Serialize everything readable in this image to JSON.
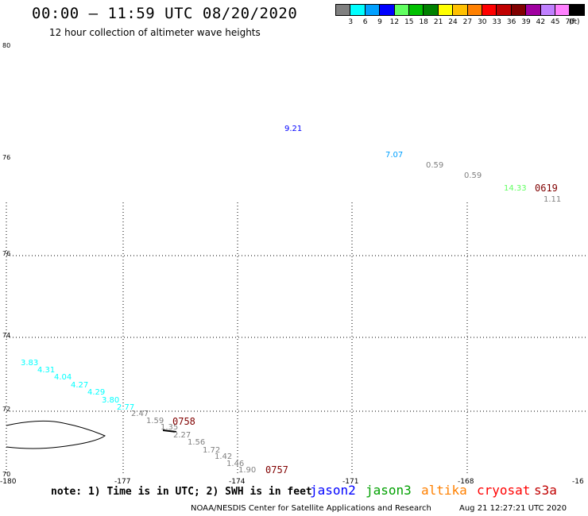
{
  "header": {
    "title": "00:00 – 11:59 UTC 08/20/2020",
    "subtitle": "12 hour collection of altimeter wave heights"
  },
  "colorbar": {
    "unit": "(ft)",
    "bins": [
      {
        "label": "3",
        "color": "#808080"
      },
      {
        "label": "6",
        "color": "#00ffff"
      },
      {
        "label": "9",
        "color": "#00a0ff"
      },
      {
        "label": "12",
        "color": "#0000ff"
      },
      {
        "label": "15",
        "color": "#60ff60"
      },
      {
        "label": "18",
        "color": "#00c000"
      },
      {
        "label": "21",
        "color": "#008000"
      },
      {
        "label": "24",
        "color": "#ffff00"
      },
      {
        "label": "27",
        "color": "#ffc000"
      },
      {
        "label": "30",
        "color": "#ff8000"
      },
      {
        "label": "33",
        "color": "#ff0000"
      },
      {
        "label": "36",
        "color": "#c00000"
      },
      {
        "label": "39",
        "color": "#800000"
      },
      {
        "label": "42",
        "color": "#a000a0"
      },
      {
        "label": "45",
        "color": "#c080ff"
      },
      {
        "label": "70",
        "color": "#ff80ff"
      },
      {
        "label": "",
        "color": "#000000"
      }
    ]
  },
  "axes": {
    "lat_labels": [
      "80",
      "76",
      "76",
      "74",
      "72",
      "70"
    ],
    "lon_labels": [
      "-180",
      "-177",
      "-174",
      "-171",
      "-168",
      "-16"
    ]
  },
  "observations": [
    {
      "text": "9.21",
      "color": "#0000ff"
    },
    {
      "text": "7.07",
      "color": "#00a0ff"
    },
    {
      "text": "0.59",
      "color": "#808080"
    },
    {
      "text": "0.59",
      "color": "#808080"
    },
    {
      "text": "14.33",
      "color": "#60ff60"
    },
    {
      "text": "1.11",
      "color": "#808080"
    },
    {
      "text": "3.83",
      "color": "#00ffff"
    },
    {
      "text": "4.31",
      "color": "#00ffff"
    },
    {
      "text": "4.04",
      "color": "#00ffff"
    },
    {
      "text": "4.27",
      "color": "#00ffff"
    },
    {
      "text": "4.29",
      "color": "#00ffff"
    },
    {
      "text": "3.80",
      "color": "#00ffff"
    },
    {
      "text": "2.77",
      "color": "#00ffff"
    },
    {
      "text": "2.47",
      "color": "#808080"
    },
    {
      "text": "1.59",
      "color": "#808080"
    },
    {
      "text": "1.35",
      "color": "#808080"
    },
    {
      "text": "2.27",
      "color": "#808080"
    },
    {
      "text": "1.56",
      "color": "#808080"
    },
    {
      "text": "1.72",
      "color": "#808080"
    },
    {
      "text": "1.42",
      "color": "#808080"
    },
    {
      "text": "1.46",
      "color": "#808080"
    },
    {
      "text": "1.90",
      "color": "#808080"
    }
  ],
  "time_labels": [
    {
      "text": "0619",
      "color": "#800000"
    },
    {
      "text": "0758",
      "color": "#800000"
    },
    {
      "text": "0757",
      "color": "#800000"
    }
  ],
  "footer": {
    "note": "note: 1) Time is in UTC; 2) SWH is in feet",
    "satellites": [
      {
        "name": "jason2",
        "color": "#0000ff"
      },
      {
        "name": "jason3",
        "color": "#00a000"
      },
      {
        "name": "altika",
        "color": "#ff8000"
      },
      {
        "name": "cryosat",
        "color": "#ff0000"
      },
      {
        "name": "s3a",
        "color": "#c00000"
      }
    ],
    "credit": "NOAA/NESDIS Center for Satellite Applications and Research",
    "timestamp": "Aug 21 12:27:21 UTC 2020"
  }
}
